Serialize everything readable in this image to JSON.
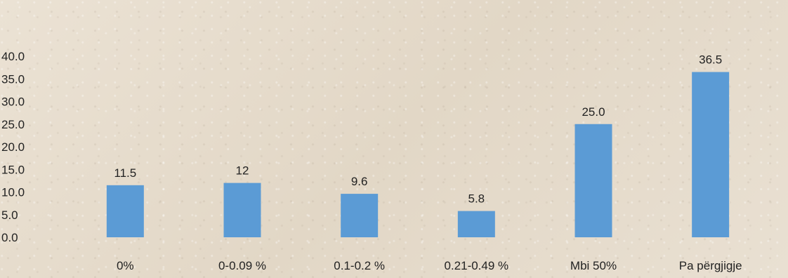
{
  "chart_data": {
    "type": "bar",
    "categories": [
      "0%",
      "0-0.09 %",
      "0.1-0.2 %",
      "0.21-0.49 %",
      "Mbi 50%",
      "Pa përgjigje"
    ],
    "values": [
      11.5,
      12,
      9.6,
      5.8,
      25.0,
      36.5
    ],
    "value_labels": [
      "11.5",
      "12",
      "9.6",
      "5.8",
      "25.0",
      "36.5"
    ],
    "ylim": [
      0,
      40
    ],
    "y_ticks": [
      "0.0",
      "5.0",
      "10.0",
      "15.0",
      "20.0",
      "25.0",
      "30.0",
      "35.0",
      "40.0"
    ],
    "bar_color": "#5b9bd5",
    "grid": false,
    "title": "",
    "xlabel": "",
    "ylabel": ""
  }
}
